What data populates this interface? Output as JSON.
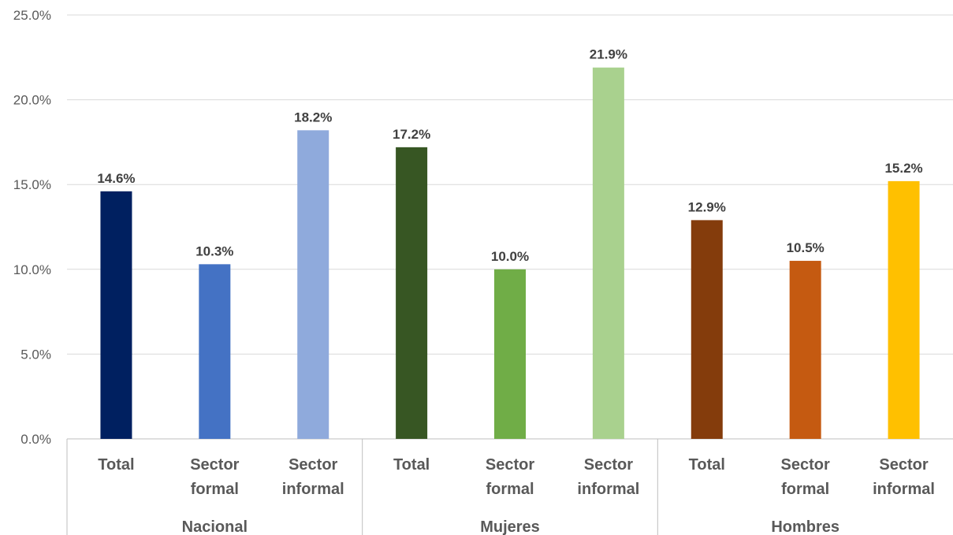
{
  "chart_data": {
    "type": "bar",
    "ylim": [
      0,
      25
    ],
    "y_ticks": [
      "0.0%",
      "5.0%",
      "10.0%",
      "15.0%",
      "20.0%",
      "25.0%"
    ],
    "grid": true,
    "legend": "none",
    "groups": [
      {
        "name": "Nacional",
        "bars": [
          {
            "category": [
              "Total"
            ],
            "value": 14.6,
            "label": "14.6%",
            "color": "#002060"
          },
          {
            "category": [
              "Sector",
              "formal"
            ],
            "value": 10.3,
            "label": "10.3%",
            "color": "#4472C4"
          },
          {
            "category": [
              "Sector",
              "informal"
            ],
            "value": 18.2,
            "label": "18.2%",
            "color": "#8FAADC"
          }
        ]
      },
      {
        "name": "Mujeres",
        "bars": [
          {
            "category": [
              "Total"
            ],
            "value": 17.2,
            "label": "17.2%",
            "color": "#375623"
          },
          {
            "category": [
              "Sector",
              "formal"
            ],
            "value": 10.0,
            "label": "10.0%",
            "color": "#70AD47"
          },
          {
            "category": [
              "Sector",
              "informal"
            ],
            "value": 21.9,
            "label": "21.9%",
            "color": "#A9D18E"
          }
        ]
      },
      {
        "name": "Hombres",
        "bars": [
          {
            "category": [
              "Total"
            ],
            "value": 12.9,
            "label": "12.9%",
            "color": "#843C0C"
          },
          {
            "category": [
              "Sector",
              "formal"
            ],
            "value": 10.5,
            "label": "10.5%",
            "color": "#C55A11"
          },
          {
            "category": [
              "Sector",
              "informal"
            ],
            "value": 15.2,
            "label": "15.2%",
            "color": "#FFC000"
          }
        ]
      }
    ]
  }
}
